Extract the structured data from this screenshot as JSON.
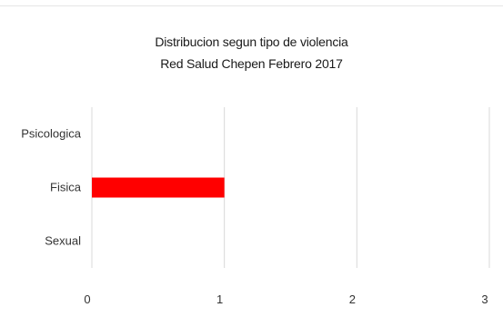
{
  "chart_data": {
    "type": "bar",
    "orientation": "horizontal",
    "title": "Distribucion segun tipo de violencia",
    "subtitle": "Red Salud Chepen Febrero 2017",
    "categories": [
      "Psicologica",
      "Fisica",
      "Sexual"
    ],
    "values": [
      0,
      1,
      0
    ],
    "xlim": [
      0,
      3
    ],
    "xticks": [
      "0",
      "1",
      "2",
      "3"
    ],
    "grid": true,
    "bar_color": "#ff0000",
    "grid_color": "#d9d9d9"
  }
}
